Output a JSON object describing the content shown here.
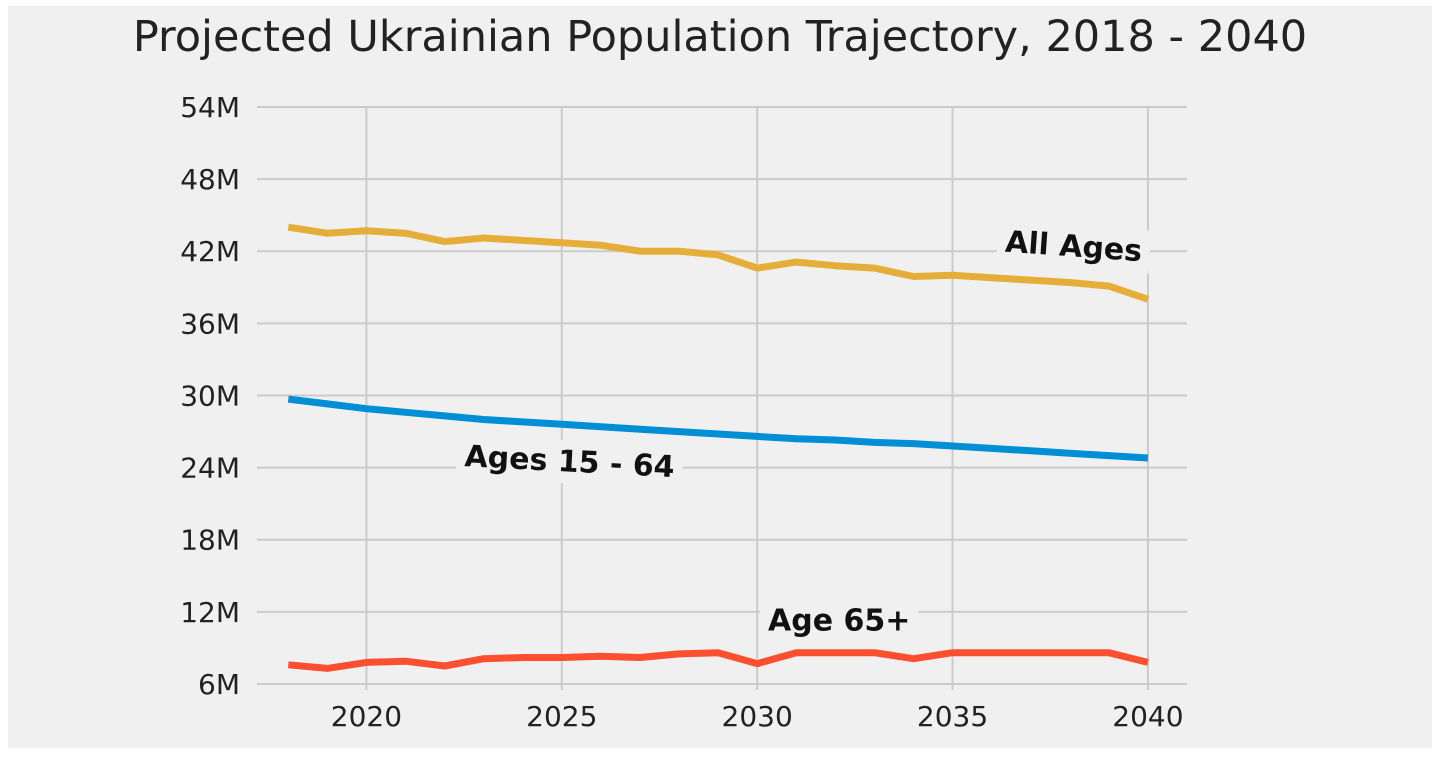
{
  "chart_data": {
    "type": "line",
    "title": "Projected Ukrainian Population Trajectory, 2018 - 2040",
    "xlabel": "",
    "ylabel": "",
    "xlim": [
      2017.2,
      2041.0
    ],
    "ylim": [
      5.5,
      54.0
    ],
    "x_ticks": [
      2020,
      2025,
      2030,
      2035,
      2040
    ],
    "x_tick_labels": [
      "2020",
      "2025",
      "2030",
      "2035",
      "2040"
    ],
    "y_ticks": [
      6,
      12,
      18,
      24,
      30,
      36,
      42,
      48,
      54
    ],
    "y_tick_labels": [
      "6M",
      "12M",
      "18M",
      "24M",
      "30M",
      "36M",
      "42M",
      "48M",
      "54M"
    ],
    "grid": true,
    "legend": "none",
    "x": [
      2018,
      2019,
      2020,
      2021,
      2022,
      2023,
      2024,
      2025,
      2026,
      2027,
      2028,
      2029,
      2030,
      2031,
      2032,
      2033,
      2034,
      2035,
      2036,
      2037,
      2038,
      2039,
      2040
    ],
    "series": [
      {
        "name": "All Ages",
        "color": "#e5ae38",
        "label_angle": 4,
        "values": [
          44.0,
          43.5,
          43.7,
          43.5,
          42.8,
          43.1,
          42.9,
          42.7,
          42.5,
          42.0,
          42.0,
          41.7,
          40.6,
          41.1,
          40.8,
          40.6,
          39.9,
          40.0,
          39.8,
          39.6,
          39.4,
          39.1,
          38.0
        ]
      },
      {
        "name": "Ages 15 - 64",
        "color": "#008fd5",
        "label_angle": 3,
        "values": [
          29.7,
          29.3,
          28.9,
          28.6,
          28.3,
          28.0,
          27.8,
          27.6,
          27.4,
          27.2,
          27.0,
          26.8,
          26.6,
          26.4,
          26.3,
          26.1,
          26.0,
          25.8,
          25.6,
          25.4,
          25.2,
          25.0,
          24.8
        ]
      },
      {
        "name": "Age 65+",
        "color": "#fc4f30",
        "label_angle": 0,
        "values": [
          7.6,
          7.3,
          7.8,
          7.9,
          7.5,
          8.1,
          8.2,
          8.2,
          8.3,
          8.2,
          8.5,
          8.6,
          7.7,
          8.6,
          8.6,
          8.6,
          8.1,
          8.6,
          8.6,
          8.6,
          8.6,
          8.6,
          7.8
        ]
      }
    ],
    "annotations": [
      {
        "text": "All Ages",
        "x": 2038.1,
        "y": 42.4,
        "series": 0
      },
      {
        "text": "Ages 15 - 64",
        "x": 2025.2,
        "y": 24.5,
        "series": 1
      },
      {
        "text": "Age 65+",
        "x": 2032.1,
        "y": 11.3,
        "series": 2
      }
    ]
  }
}
